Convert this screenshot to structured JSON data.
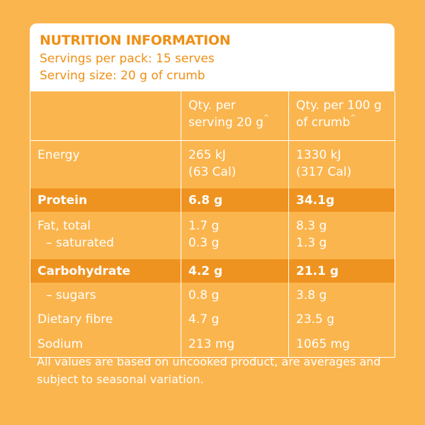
{
  "header": {
    "title": "NUTRITION INFORMATION",
    "servings_per_pack": "Servings per pack: 15 serves",
    "serving_size": "Serving size: 20 g of crumb"
  },
  "columns": {
    "col2_line1": "Qty. per",
    "col2_line2": "serving 20 g",
    "col3_line1": "Qty. per 100 g",
    "col3_line2": "of crumb",
    "caret": "^"
  },
  "rows": {
    "energy": {
      "label": "Energy",
      "serving_kj": "265 kJ",
      "serving_cal": "(63 Cal)",
      "per100_kj": "1330 kJ",
      "per100_cal": "(317 Cal)"
    },
    "protein": {
      "label": "Protein",
      "serving": "6.8 g",
      "per100": "34.1g"
    },
    "fat_total": {
      "label": "Fat, total",
      "serving": "1.7 g",
      "per100": "8.3 g"
    },
    "saturated": {
      "label": "– saturated",
      "serving": "0.3 g",
      "per100": "1.3 g"
    },
    "carbohydrate": {
      "label": "Carbohydrate",
      "serving": "4.2 g",
      "per100": "21.1 g"
    },
    "sugars": {
      "label": "– sugars",
      "serving": "0.8 g",
      "per100": "3.8 g"
    },
    "fibre": {
      "label": "Dietary fibre",
      "serving": "4.7 g",
      "per100": "23.5 g"
    },
    "sodium": {
      "label": "Sodium",
      "serving": "213 mg",
      "per100": "1065 mg"
    }
  },
  "footnote": "All values are based on uncooked product, are averages and subject to seasonal variation.",
  "colors": {
    "background": "#fbb54e",
    "highlight_row": "#ef9320",
    "title": "#ef8f14",
    "header_bg": "#ffffff"
  }
}
